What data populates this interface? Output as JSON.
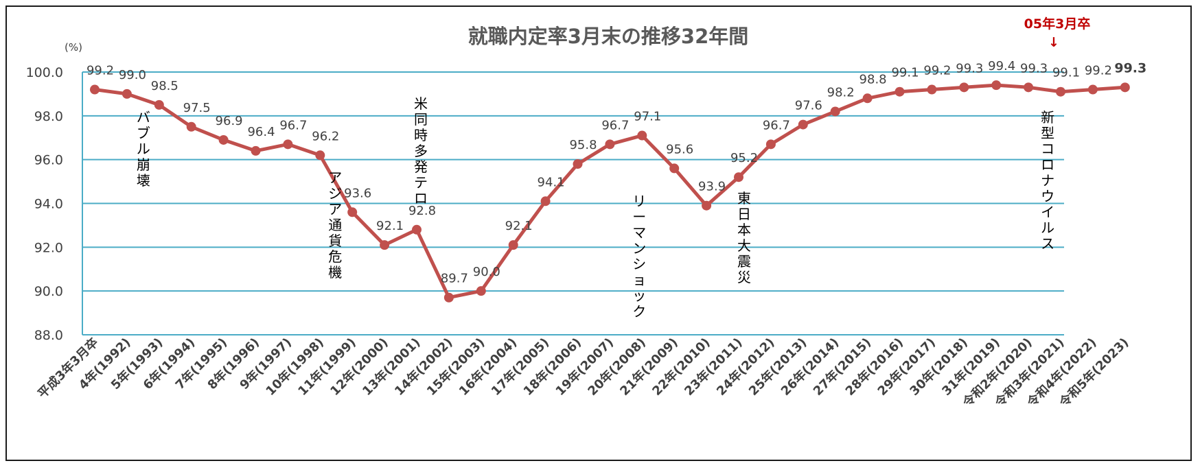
{
  "chart_data": {
    "type": "line",
    "title": "就職内定率3月末の推移32年間",
    "ylabel": "(%)",
    "ylim": [
      88.0,
      100.0
    ],
    "yticks": [
      "100.0",
      "98.0",
      "96.0",
      "94.0",
      "92.0",
      "90.0",
      "88.0"
    ],
    "grid": true,
    "categories": [
      "平成3年3月卒",
      "4年(1992)",
      "5年(1993)",
      "6年(1994)",
      "7年(1995)",
      "8年(1996)",
      "9年(1997)",
      "10年(1998)",
      "11年(1999)",
      "12年(2000)",
      "13年(2001)",
      "14年(2002)",
      "15年(2003)",
      "16年(2004)",
      "17年(2005)",
      "18年(2006)",
      "19年(2007)",
      "20年(2008)",
      "21年(2009)",
      "22年(2010)",
      "23年(2011)",
      "24年(2012)",
      "25年(2013)",
      "26年(2014)",
      "27年(2015)",
      "28年(2016)",
      "29年(2017)",
      "30年(2018)",
      "31年(2019)",
      "令和2年(2020)",
      "令和3年(2021)",
      "令和4年(2022)",
      "令和5年(2023)"
    ],
    "values": [
      99.2,
      99.0,
      98.5,
      97.5,
      96.9,
      96.4,
      96.7,
      96.2,
      93.6,
      92.1,
      92.8,
      89.7,
      90.0,
      92.1,
      94.1,
      95.8,
      96.7,
      97.1,
      95.6,
      93.9,
      95.2,
      96.7,
      97.6,
      98.2,
      98.8,
      99.1,
      99.2,
      99.3,
      99.4,
      99.3,
      99.1,
      99.2,
      99.3
    ],
    "labels": [
      "99.2",
      "99.0",
      "98.5",
      "97.5",
      "96.9",
      "96.4",
      "96.7",
      "96.2",
      "93.6",
      "92.1",
      "92.8",
      "89.7",
      "90.0",
      "92.1",
      "94.1",
      "95.8",
      "96.7",
      "97.1",
      "95.6",
      "93.9",
      "95.2",
      "96.7",
      "97.6",
      "98.2",
      "98.8",
      "99.1",
      "99.2",
      "99.3",
      "99.4",
      "99.3",
      "99.1",
      "99.2",
      "99.3"
    ],
    "line_color": "#c0504d",
    "grid_color": "#4bacc6",
    "axis_color": "#4bacc6",
    "annotations": [
      {
        "index": 1,
        "text": "バブル崩壊"
      },
      {
        "index": 7,
        "text": "アジア通貨危機"
      },
      {
        "index": 10,
        "text": "米同時多発テロ"
      },
      {
        "index": 17,
        "text": "リーマンショック"
      },
      {
        "index": 20,
        "text": "東日本大震災"
      },
      {
        "index": 29,
        "text": "新型コロナウイルス"
      }
    ],
    "callout": {
      "text": "05年3月卒",
      "arrow": "↓",
      "color": "#c00000"
    }
  }
}
